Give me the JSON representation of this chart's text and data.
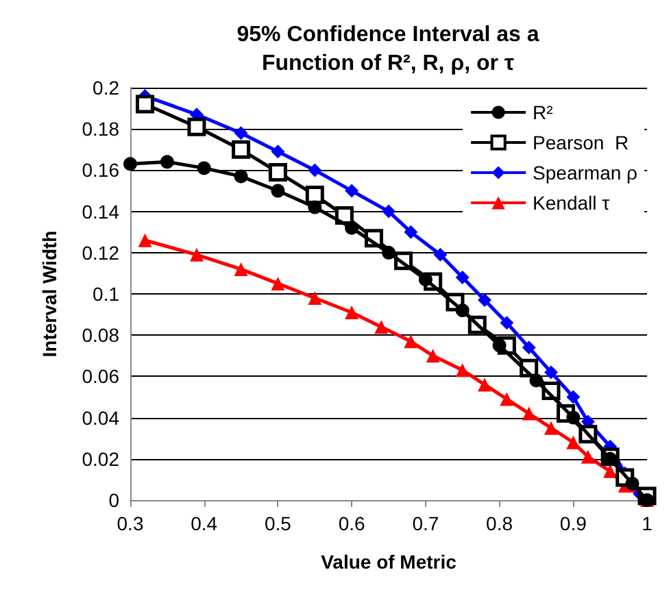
{
  "chart_data": {
    "type": "line",
    "title": "95% Confidence Interval as a\nFunction of R², R, ρ, or τ",
    "xlabel": "Value of Metric",
    "ylabel": "Interval Width",
    "xlim": [
      0.3,
      1
    ],
    "xticks": [
      0.3,
      0.4,
      0.5,
      0.6,
      0.7,
      0.8,
      0.9,
      1
    ],
    "ylim": [
      0,
      0.2
    ],
    "yticks": [
      0,
      0.02,
      0.04,
      0.06,
      0.08,
      0.1,
      0.12,
      0.14,
      0.16,
      0.18,
      0.2
    ],
    "grid": "y",
    "legend": "top right",
    "line_style": "solid",
    "series": [
      {
        "name": "R²",
        "color": "#000000",
        "marker": "circle",
        "x": [
          0.3,
          0.35,
          0.4,
          0.45,
          0.5,
          0.55,
          0.6,
          0.65,
          0.7,
          0.75,
          0.8,
          0.85,
          0.9,
          0.95,
          0.98,
          1
        ],
        "values": [
          0.163,
          0.164,
          0.161,
          0.157,
          0.15,
          0.142,
          0.132,
          0.12,
          0.107,
          0.092,
          0.075,
          0.058,
          0.04,
          0.02,
          0.008,
          0
        ]
      },
      {
        "name": "Pearson  R",
        "color": "#000000",
        "marker": "square",
        "x": [
          0.32,
          0.39,
          0.45,
          0.5,
          0.55,
          0.59,
          0.63,
          0.67,
          0.71,
          0.74,
          0.77,
          0.81,
          0.84,
          0.87,
          0.89,
          0.92,
          0.95,
          0.97,
          1
        ],
        "values": [
          0.192,
          0.181,
          0.17,
          0.159,
          0.148,
          0.138,
          0.127,
          0.116,
          0.106,
          0.096,
          0.085,
          0.075,
          0.064,
          0.053,
          0.042,
          0.032,
          0.021,
          0.011,
          0.002
        ]
      },
      {
        "name": "Spearman ρ",
        "color": "#0000ff",
        "marker": "diamond",
        "x": [
          0.32,
          0.39,
          0.45,
          0.5,
          0.55,
          0.6,
          0.65,
          0.68,
          0.72,
          0.75,
          0.78,
          0.81,
          0.84,
          0.87,
          0.9,
          0.92,
          0.95,
          0.97,
          0.99,
          1
        ],
        "values": [
          0.196,
          0.187,
          0.178,
          0.169,
          0.16,
          0.15,
          0.14,
          0.13,
          0.119,
          0.108,
          0.097,
          0.086,
          0.074,
          0.062,
          0.05,
          0.038,
          0.026,
          0.013,
          0.003,
          0
        ]
      },
      {
        "name": "Kendall τ",
        "color": "#ff0000",
        "marker": "triangle",
        "x": [
          0.32,
          0.39,
          0.45,
          0.5,
          0.55,
          0.6,
          0.64,
          0.68,
          0.71,
          0.75,
          0.78,
          0.81,
          0.84,
          0.87,
          0.9,
          0.92,
          0.95,
          0.97,
          1
        ],
        "values": [
          0.126,
          0.119,
          0.112,
          0.105,
          0.098,
          0.091,
          0.084,
          0.077,
          0.07,
          0.063,
          0.056,
          0.049,
          0.042,
          0.035,
          0.028,
          0.021,
          0.014,
          0.007,
          0
        ]
      }
    ]
  }
}
